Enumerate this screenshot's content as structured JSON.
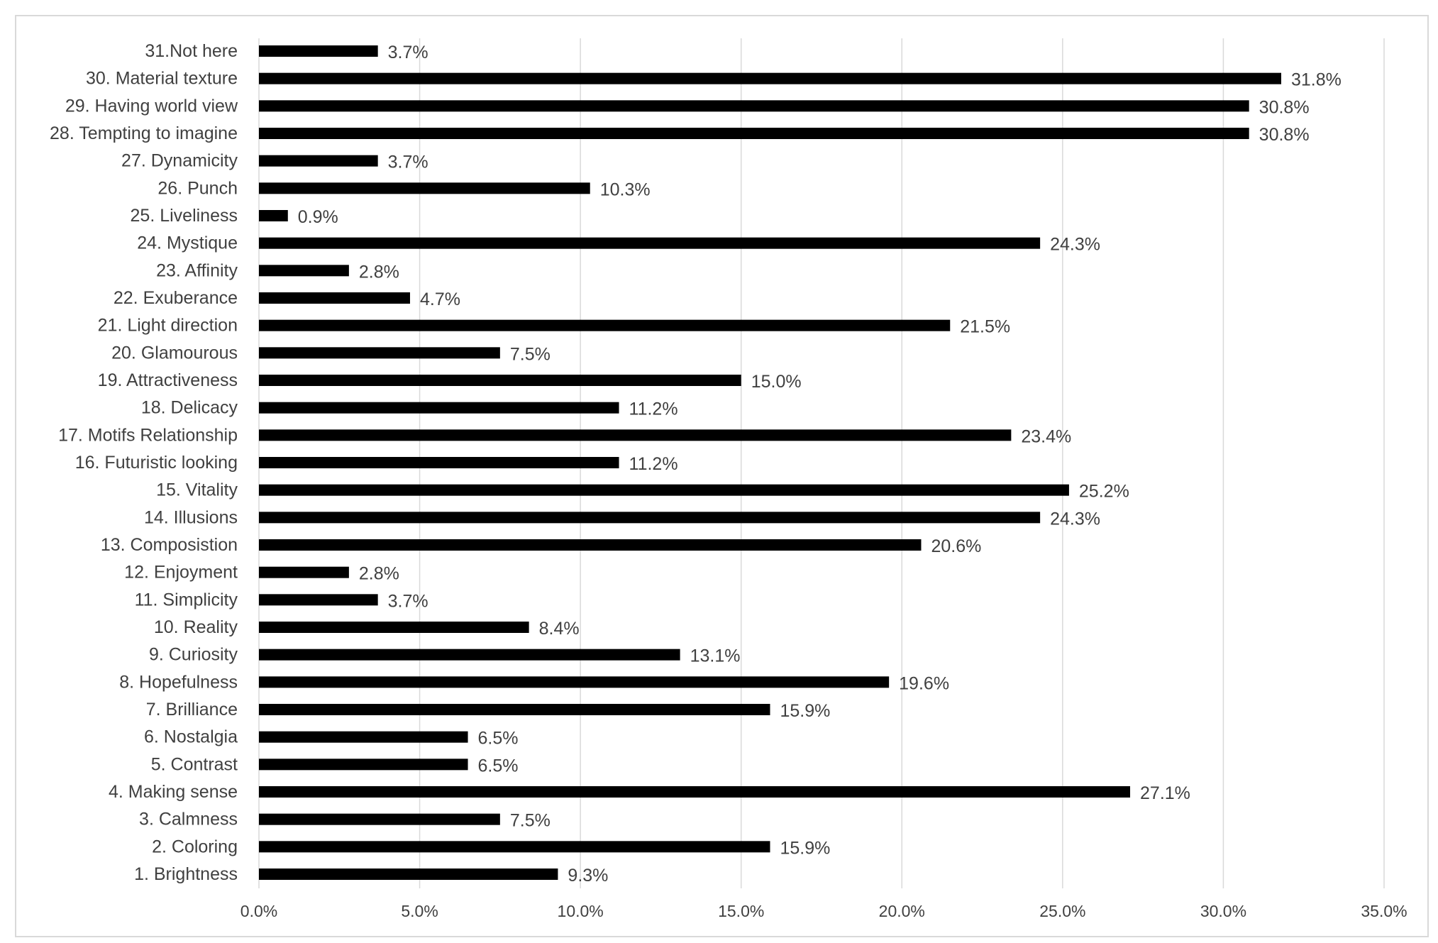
{
  "chart_data": {
    "type": "bar",
    "orientation": "horizontal",
    "categories": [
      "1. Brightness",
      "2. Coloring",
      "3. Calmness",
      "4. Making sense",
      "5. Contrast",
      "6. Nostalgia",
      "7. Brilliance",
      "8. Hopefulness",
      "9. Curiosity",
      "10. Reality",
      "11. Simplicity",
      "12. Enjoyment",
      "13. Composistion",
      "14. Illusions",
      "15. Vitality",
      "16. Futuristic looking",
      "17. Motifs Relationship",
      "18. Delicacy",
      "19. Attractiveness",
      "20. Glamourous",
      "21. Light direction",
      "22. Exuberance",
      "23. Affinity",
      "24. Mystique",
      "25. Liveliness",
      "26. Punch",
      "27. Dynamicity",
      "28. Tempting to imagine",
      "29. Having world view",
      "30. Material texture",
      "31.Not here"
    ],
    "values": [
      9.3,
      15.9,
      7.5,
      27.1,
      6.5,
      6.5,
      15.9,
      19.6,
      13.1,
      8.4,
      3.7,
      2.8,
      20.6,
      24.3,
      25.2,
      11.2,
      23.4,
      11.2,
      15.0,
      7.5,
      21.5,
      4.7,
      2.8,
      24.3,
      0.9,
      10.3,
      3.7,
      30.8,
      30.8,
      31.8,
      3.7
    ],
    "value_labels": [
      "9.3%",
      "15.9%",
      "7.5%",
      "27.1%",
      "6.5%",
      "6.5%",
      "15.9%",
      "19.6%",
      "13.1%",
      "8.4%",
      "3.7%",
      "2.8%",
      "20.6%",
      "24.3%",
      "25.2%",
      "11.2%",
      "23.4%",
      "11.2%",
      "15.0%",
      "7.5%",
      "21.5%",
      "4.7%",
      "2.8%",
      "24.3%",
      "0.9%",
      "10.3%",
      "3.7%",
      "30.8%",
      "30.8%",
      "31.8%",
      "3.7%"
    ],
    "unit": "%",
    "xlim": [
      0,
      35
    ],
    "x_ticks": [
      0,
      5,
      10,
      15,
      20,
      25,
      30,
      35
    ],
    "x_tick_labels": [
      "0.0%",
      "5.0%",
      "10.0%",
      "15.0%",
      "20.0%",
      "25.0%",
      "30.0%",
      "35.0%"
    ],
    "title": "",
    "xlabel": "",
    "ylabel": "",
    "grid": "vertical",
    "legend": "none",
    "category_order": "bottom-to-top",
    "colors": {
      "bar": "#000000",
      "grid": "#d9d9d9",
      "text": "#404040",
      "frame": "#d9d9d9",
      "background": "#ffffff"
    }
  }
}
